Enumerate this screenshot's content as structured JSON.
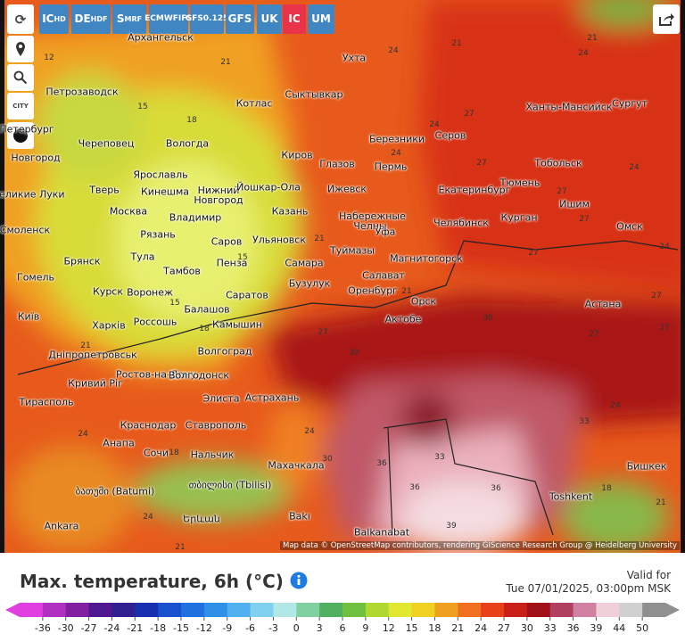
{
  "toolbar": {
    "models": [
      {
        "main": "IC",
        "sub": "HD"
      },
      {
        "main": "DE",
        "sub": "HDF"
      },
      {
        "main": "S",
        "sub": "MRF"
      },
      {
        "main": "ECMWF",
        "sub": "IFS"
      },
      {
        "main": "GFS",
        "sub": "0.125"
      },
      {
        "main": "GFS"
      },
      {
        "main": "UK"
      },
      {
        "main": "IC"
      },
      {
        "main": "UM"
      }
    ],
    "city_toggle": "CITY"
  },
  "map": {
    "cities": [
      "Архангельск",
      "Петрозаводск",
      "Ухта",
      "Сыктывкар",
      "Котлас",
      "Ханты-Мансийск",
      "Сургут",
      "Березники",
      "Серов",
      "Череповец",
      "Вологда",
      "Киров",
      "Глазов",
      "Пермь",
      "Тобольск",
      "Ярославль",
      "Тюмень",
      "Екатеринбург",
      "Тверь",
      "Кинешма",
      "Нижний Новгород",
      "Йошкар-Ола",
      "Ижевск",
      "Ишим",
      "Москва",
      "Владимир",
      "Казань",
      "Набережные Челны",
      "Челябинск",
      "Курган",
      "Омск",
      "Смоленск",
      "Рязань",
      "Саров",
      "Ульяновск",
      "Уфа",
      "Туймазы",
      "Тула",
      "Брянск",
      "Пенза",
      "Самара",
      "Магнитогорск",
      "Тамбов",
      "Салават",
      "Курск",
      "Воронеж",
      "Саратов",
      "Бузулук",
      "Оренбург",
      "Орск",
      "Астана",
      "Балашов",
      "Россошь",
      "Камышин",
      "Актобе",
      "Харків",
      "Київ",
      "Гомель",
      "Волгоград",
      "Дніпропетровськ",
      "Ростов-на-Дону",
      "Волгодонск",
      "Кривий Ріг",
      "Элиста",
      "Астрахань",
      "Тирасполь",
      "Краснодар",
      "Ставрополь",
      "Анапа",
      "Сочи",
      "Нальчик",
      "Махачкала",
      "Бишкек",
      "Toshkent",
      "ბათუმი (Batumi)",
      "თბილისი (Tbilisi)",
      "Bakı",
      "Balkanabat",
      "Ankara",
      "Երևան",
      "Великие Луки",
      "Новгород",
      "Петербург"
    ],
    "values": [
      12,
      15,
      18,
      21,
      21,
      24,
      21,
      24,
      24,
      27,
      27,
      24,
      24,
      27,
      27,
      21,
      15,
      21,
      27,
      27,
      15,
      18,
      21,
      30,
      27,
      30,
      27,
      24,
      33,
      33,
      36,
      36,
      39,
      36,
      24,
      18,
      24,
      30,
      21,
      18,
      24,
      21,
      27,
      24
    ],
    "attribution": "Map data © OpenStreetMap contributors, rendering GIScience Research Group @ Heidelberg University"
  },
  "legend": {
    "title": "Max. temperature, 6h (°C)",
    "valid_label": "Valid for",
    "valid_time": "Tue 07/01/2025, 03:00pm MSK",
    "ticks": [
      -36,
      -30,
      -27,
      -24,
      -21,
      -18,
      -15,
      -12,
      -9,
      -6,
      -3,
      0,
      3,
      6,
      9,
      12,
      15,
      18,
      21,
      24,
      27,
      30,
      33,
      36,
      39,
      44,
      50
    ],
    "colors": [
      "#e040e0",
      "#b030c0",
      "#8020a0",
      "#501890",
      "#302090",
      "#1830b0",
      "#1850d0",
      "#2070e0",
      "#3090e8",
      "#50b0f0",
      "#80d0f0",
      "#b0e8e8",
      "#80d0a0",
      "#50b060",
      "#70c040",
      "#b0d830",
      "#e0e830",
      "#f0d020",
      "#f0a020",
      "#f07020",
      "#e84018",
      "#c82018",
      "#a01018",
      "#b04060",
      "#d080a0",
      "#f0d0d8",
      "#d0d0d0",
      "#909090"
    ]
  }
}
